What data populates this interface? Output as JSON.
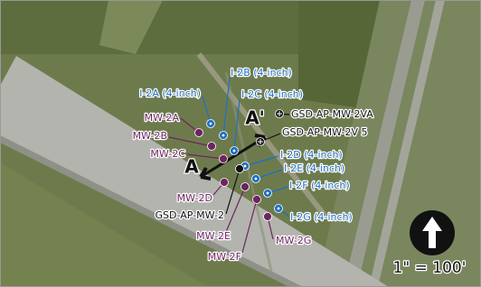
{
  "wells": {
    "injection": [
      "I-2A (4-inch)",
      "I-2B (4-inch)",
      "I-2C (4-inch)",
      "I-2D (4-inch)",
      "I-2E (4-inch)",
      "I-2F (4-inch)",
      "I-2G (4-inch)"
    ],
    "monitoring": [
      "MW-2A",
      "MW-2B",
      "MW-2C",
      "MW-2D",
      "MW-2E",
      "MW-2F",
      "MW-2G"
    ],
    "other": [
      "GSD-AP-MW-2VA",
      "GSD-AP-MW-2V 5",
      "GSD-AP-MW-2"
    ]
  },
  "cross_section": [
    "A",
    "A'"
  ],
  "scale_bar": "1\" = 100'"
}
